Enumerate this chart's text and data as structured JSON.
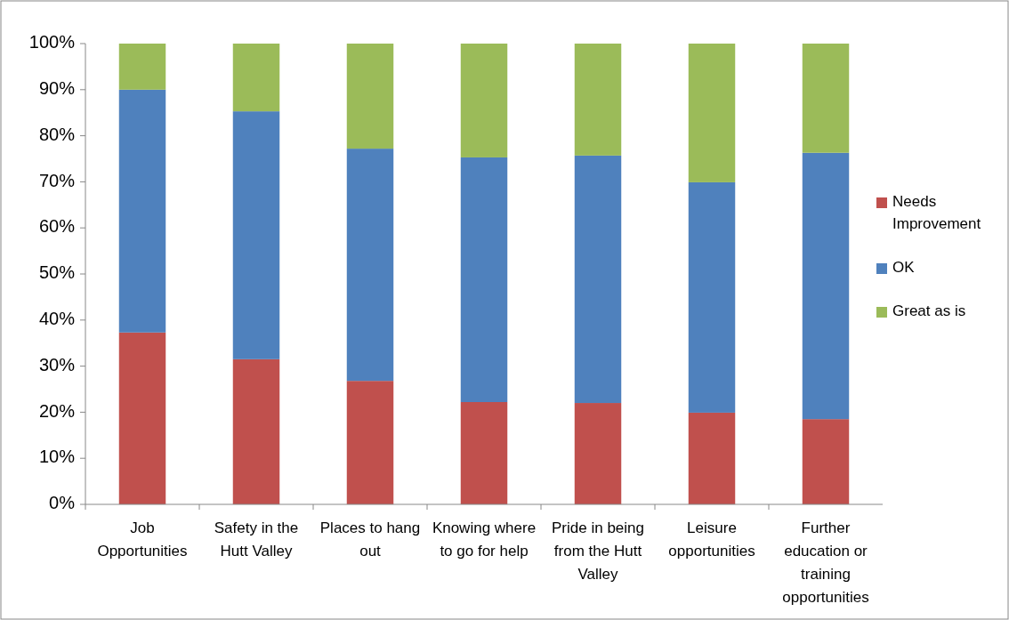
{
  "chart_data": {
    "type": "bar",
    "stacked": true,
    "categories": [
      "Job Opportunities",
      "Safety in the Hutt Valley",
      "Places to hang out",
      "Knowing where to go for help",
      "Pride in being from the Hutt Valley",
      "Leisure opportunities",
      "Further education or training opportunities"
    ],
    "series": [
      {
        "name": "Needs Improvement",
        "color": "#c0504d",
        "values": [
          37.3,
          31.5,
          26.8,
          22.2,
          22.0,
          19.9,
          18.5
        ]
      },
      {
        "name": "OK",
        "color": "#4f81bd",
        "values": [
          52.7,
          53.8,
          50.4,
          53.1,
          53.7,
          50.0,
          57.8
        ]
      },
      {
        "name": "Great as is",
        "color": "#9bbb59",
        "values": [
          10.0,
          14.7,
          22.8,
          24.7,
          24.3,
          30.1,
          23.7
        ]
      }
    ],
    "ylim": [
      0,
      100
    ],
    "yticks": [
      {
        "value": 0,
        "label": "0%"
      },
      {
        "value": 10,
        "label": "10%"
      },
      {
        "value": 20,
        "label": "20%"
      },
      {
        "value": 30,
        "label": "30%"
      },
      {
        "value": 40,
        "label": "40%"
      },
      {
        "value": 50,
        "label": "50%"
      },
      {
        "value": 60,
        "label": "60%"
      },
      {
        "value": 70,
        "label": "70%"
      },
      {
        "value": 80,
        "label": "80%"
      },
      {
        "value": 90,
        "label": "90%"
      },
      {
        "value": 100,
        "label": "100%"
      }
    ],
    "grid": false,
    "legend": "right"
  }
}
